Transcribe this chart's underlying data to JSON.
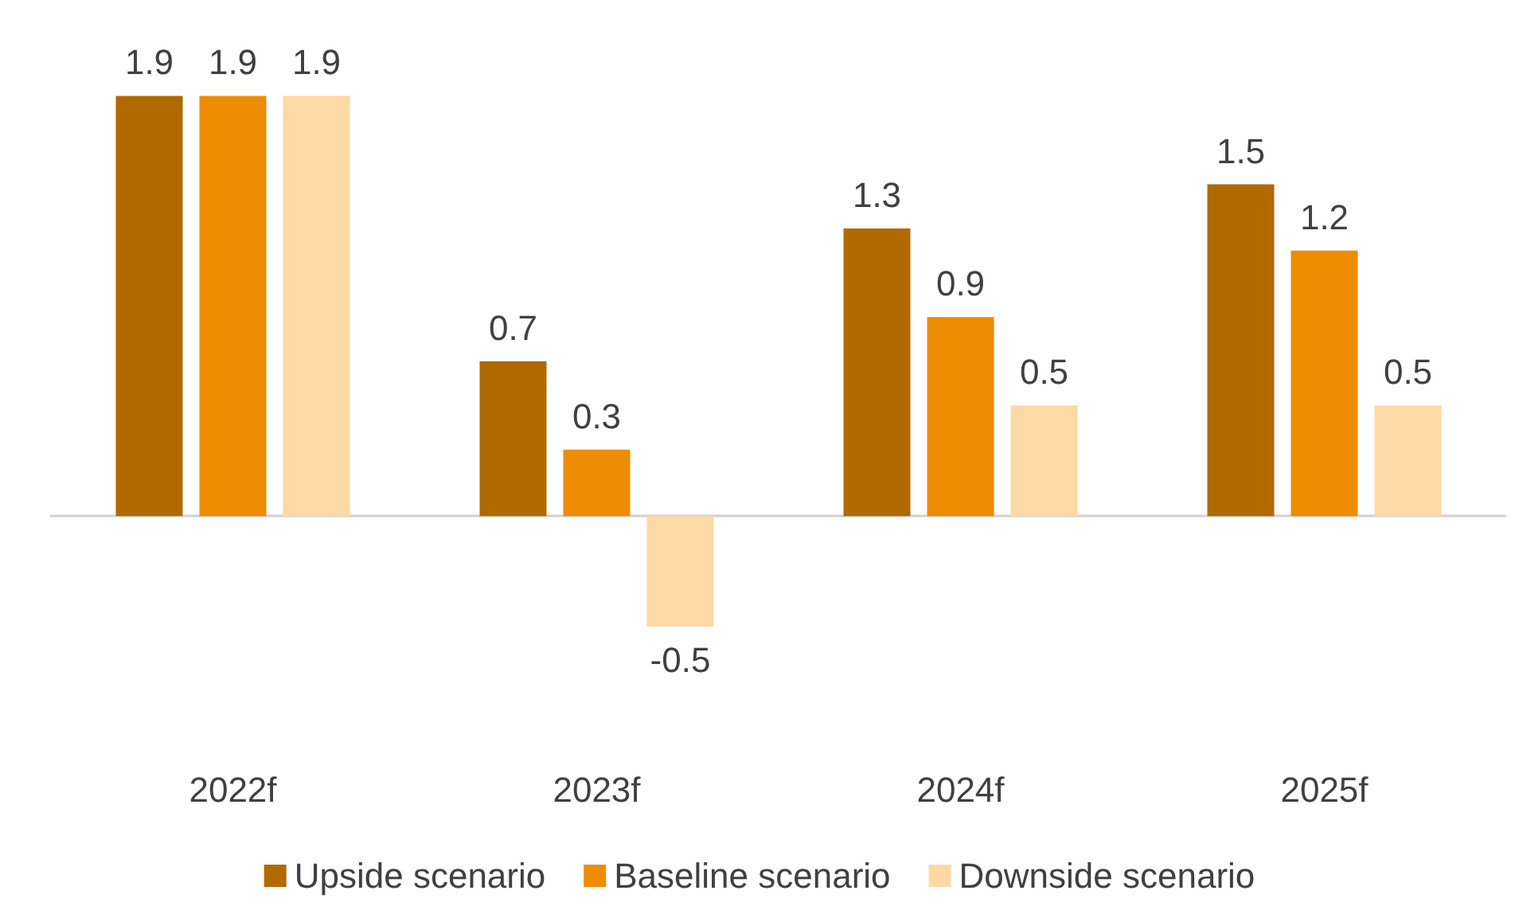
{
  "chart_data": {
    "type": "bar",
    "categories": [
      "2022f",
      "2023f",
      "2024f",
      "2025f"
    ],
    "series": [
      {
        "name": "Upside scenario",
        "color": "#b06a00",
        "values": [
          1.9,
          0.7,
          1.3,
          1.5
        ]
      },
      {
        "name": "Baseline scenario",
        "color": "#ee8c00",
        "values": [
          1.9,
          0.3,
          0.9,
          1.2
        ]
      },
      {
        "name": "Downside scenario",
        "color": "#fdd9a6",
        "values": [
          1.9,
          -0.5,
          0.5,
          0.5
        ]
      }
    ],
    "data_labels": true,
    "legend": "bottom",
    "grid": false
  }
}
